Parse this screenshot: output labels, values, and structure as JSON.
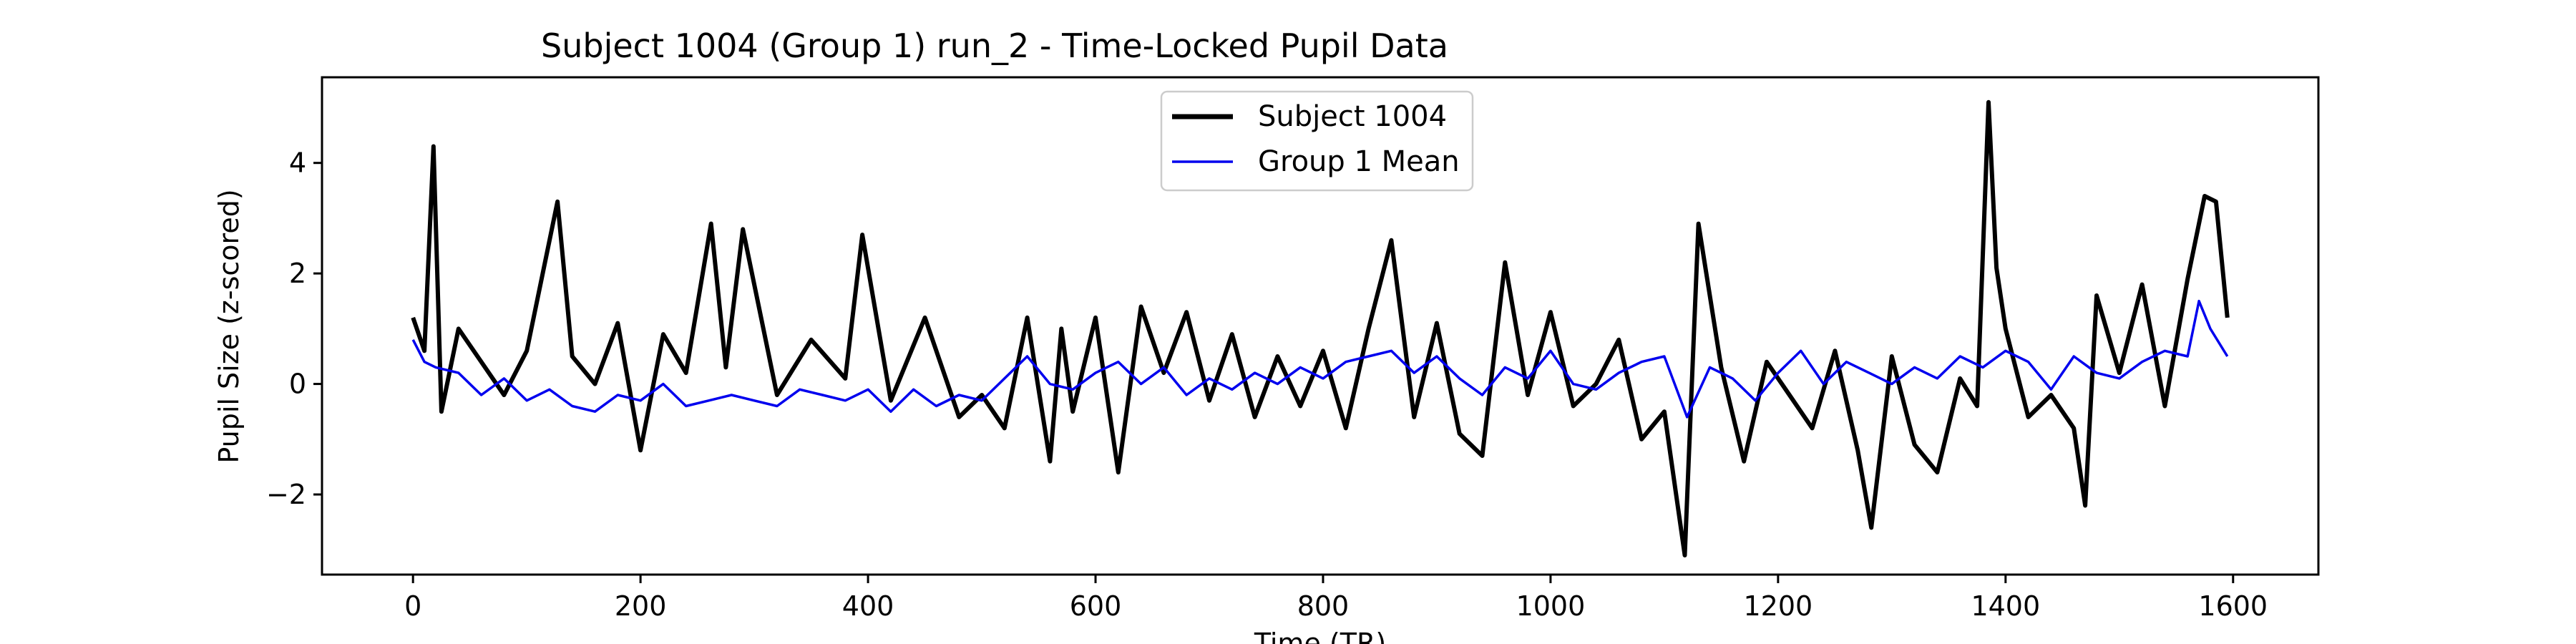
{
  "chart_data": {
    "type": "line",
    "title": "Subject 1004 (Group 1) run_2 - Time-Locked Pupil Data",
    "xlabel": "Time (TR)",
    "ylabel": "Pupil Size (z-scored)",
    "xlim": [
      -80,
      1675
    ],
    "ylim": [
      -3.45,
      5.55
    ],
    "xticks": [
      0,
      200,
      400,
      600,
      800,
      1000,
      1200,
      1400,
      1600
    ],
    "yticks": [
      -2,
      0,
      2,
      4
    ],
    "xtick_labels": [
      "0",
      "200",
      "400",
      "600",
      "800",
      "1000",
      "1200",
      "1400",
      "1600"
    ],
    "ytick_labels": [
      "−2",
      "0",
      "2",
      "4"
    ],
    "grid": false,
    "legend_position": "top-center",
    "series": [
      {
        "name": "Subject 1004",
        "color": "#000000",
        "x": [
          0,
          10,
          18,
          25,
          40,
          60,
          80,
          100,
          127,
          140,
          160,
          180,
          200,
          220,
          240,
          262,
          275,
          290,
          320,
          350,
          380,
          395,
          420,
          450,
          480,
          500,
          520,
          540,
          560,
          570,
          580,
          600,
          620,
          640,
          660,
          680,
          700,
          720,
          740,
          760,
          780,
          800,
          820,
          840,
          860,
          880,
          900,
          920,
          940,
          960,
          980,
          1000,
          1020,
          1040,
          1060,
          1080,
          1100,
          1118,
          1130,
          1150,
          1170,
          1190,
          1210,
          1230,
          1250,
          1270,
          1282,
          1300,
          1320,
          1340,
          1360,
          1375,
          1385,
          1392,
          1400,
          1420,
          1440,
          1460,
          1470,
          1480,
          1500,
          1520,
          1540,
          1560,
          1575,
          1585,
          1595
        ],
        "y": [
          1.2,
          0.6,
          4.3,
          -0.5,
          1.0,
          0.4,
          -0.2,
          0.6,
          3.3,
          0.5,
          0.0,
          1.1,
          -1.2,
          0.9,
          0.2,
          2.9,
          0.3,
          2.8,
          -0.2,
          0.8,
          0.1,
          2.7,
          -0.3,
          1.2,
          -0.6,
          -0.2,
          -0.8,
          1.2,
          -1.4,
          1.0,
          -0.5,
          1.2,
          -1.6,
          1.4,
          0.2,
          1.3,
          -0.3,
          0.9,
          -0.6,
          0.5,
          -0.4,
          0.6,
          -0.8,
          1.0,
          2.6,
          -0.6,
          1.1,
          -0.9,
          -1.3,
          2.2,
          -0.2,
          1.3,
          -0.4,
          0.0,
          0.8,
          -1.0,
          -0.5,
          -3.1,
          2.9,
          0.3,
          -1.4,
          0.4,
          -0.2,
          -0.8,
          0.6,
          -1.2,
          -2.6,
          0.5,
          -1.1,
          -1.6,
          0.1,
          -0.4,
          5.1,
          2.1,
          1.0,
          -0.6,
          -0.2,
          -0.8,
          -2.2,
          1.6,
          0.2,
          1.8,
          -0.4,
          1.9,
          3.4,
          3.3,
          1.2
        ]
      },
      {
        "name": "Group 1 Mean",
        "color": "#0000ee",
        "x": [
          0,
          10,
          20,
          40,
          60,
          80,
          100,
          120,
          140,
          160,
          180,
          200,
          220,
          240,
          260,
          280,
          300,
          320,
          340,
          360,
          380,
          400,
          420,
          440,
          460,
          480,
          500,
          520,
          540,
          560,
          580,
          600,
          620,
          640,
          660,
          680,
          700,
          720,
          740,
          760,
          780,
          800,
          820,
          840,
          860,
          880,
          900,
          920,
          940,
          960,
          980,
          1000,
          1020,
          1040,
          1060,
          1080,
          1100,
          1120,
          1140,
          1160,
          1180,
          1200,
          1220,
          1240,
          1260,
          1280,
          1300,
          1320,
          1340,
          1360,
          1380,
          1400,
          1420,
          1440,
          1460,
          1480,
          1500,
          1520,
          1540,
          1560,
          1570,
          1580,
          1595
        ],
        "y": [
          0.8,
          0.4,
          0.3,
          0.2,
          -0.2,
          0.1,
          -0.3,
          -0.1,
          -0.4,
          -0.5,
          -0.2,
          -0.3,
          0.0,
          -0.4,
          -0.3,
          -0.2,
          -0.3,
          -0.4,
          -0.1,
          -0.2,
          -0.3,
          -0.1,
          -0.5,
          -0.1,
          -0.4,
          -0.2,
          -0.3,
          0.1,
          0.5,
          0.0,
          -0.1,
          0.2,
          0.4,
          0.0,
          0.3,
          -0.2,
          0.1,
          -0.1,
          0.2,
          0.0,
          0.3,
          0.1,
          0.4,
          0.5,
          0.6,
          0.2,
          0.5,
          0.1,
          -0.2,
          0.3,
          0.1,
          0.6,
          0.0,
          -0.1,
          0.2,
          0.4,
          0.5,
          -0.6,
          0.3,
          0.1,
          -0.3,
          0.2,
          0.6,
          0.0,
          0.4,
          0.2,
          0.0,
          0.3,
          0.1,
          0.5,
          0.3,
          0.6,
          0.4,
          -0.1,
          0.5,
          0.2,
          0.1,
          0.4,
          0.6,
          0.5,
          1.5,
          1.0,
          0.5
        ]
      }
    ]
  }
}
